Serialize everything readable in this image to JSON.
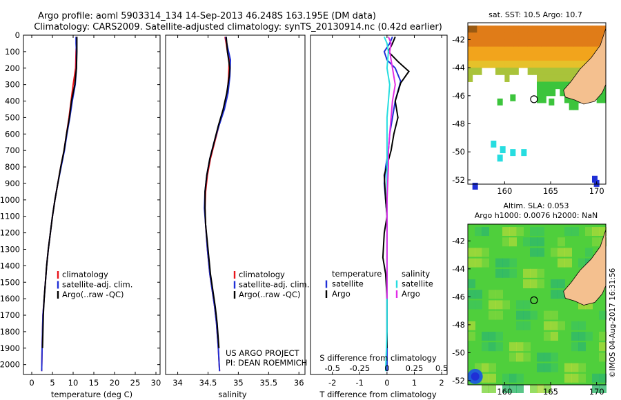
{
  "header": {
    "title_line1": "Argo profile: aoml 5903314_134 14-Sep-2013 46.248S 163.195E (DM data)",
    "title_line2": "Climatology: CARS2009. Satellite-adjusted climatology: synTS_20130914.nc (0.42d earlier)"
  },
  "colors": {
    "climatology": "#e8141a",
    "satellite": "#1f2fd6",
    "argo": "#000000",
    "satellite_salinity": "#27dde0",
    "argo_salinity": "#e12ee6",
    "land": "#f4c08f"
  },
  "depth_ticks": [
    "0",
    "100",
    "200",
    "300",
    "400",
    "500",
    "600",
    "700",
    "800",
    "900",
    "1000",
    "1100",
    "1200",
    "1300",
    "1400",
    "1500",
    "1600",
    "1700",
    "1800",
    "1900",
    "2000"
  ],
  "chart_data": [
    {
      "type": "line",
      "name": "temperature",
      "xlabel": "temperature (deg C)",
      "xlim": [
        -2,
        31
      ],
      "ylim": [
        2060,
        0
      ],
      "xticks": [
        "0",
        "5",
        "10",
        "15",
        "20",
        "25",
        "30"
      ],
      "legend": [
        "climatology",
        "satellite-adj. clim.",
        "Argo(..raw -QC)"
      ],
      "series": [
        {
          "name": "climatology",
          "color": "#e8141a",
          "x": [
            10.8,
            10.8,
            10.7,
            10.6,
            10.0,
            9.5,
            9.0,
            8.4,
            7.8,
            7.0,
            6.3,
            5.6,
            5.0,
            4.5,
            4.0,
            3.6,
            3.3,
            3.0,
            2.7,
            2.5,
            2.4
          ],
          "y": [
            10,
            50,
            100,
            200,
            300,
            400,
            500,
            600,
            700,
            800,
            900,
            1000,
            1100,
            1200,
            1300,
            1400,
            1500,
            1600,
            1700,
            1900,
            2040
          ]
        },
        {
          "name": "satellite-adj. clim.",
          "color": "#1f2fd6",
          "x": [
            10.7,
            10.7,
            10.8,
            10.8,
            10.5,
            9.8,
            9.2,
            8.5,
            7.9,
            7.1,
            6.3,
            5.6,
            5.0,
            4.5,
            4.0,
            3.6,
            3.3,
            3.0,
            2.7,
            2.5,
            2.4
          ],
          "y": [
            10,
            50,
            100,
            200,
            300,
            400,
            500,
            600,
            700,
            800,
            900,
            1000,
            1100,
            1200,
            1300,
            1400,
            1500,
            1600,
            1700,
            1900,
            2040
          ]
        },
        {
          "name": "Argo(..raw -QC)",
          "color": "#000000",
          "x": [
            10.9,
            10.9,
            10.9,
            10.8,
            10.4,
            9.6,
            9.1,
            8.4,
            7.8,
            7.0,
            6.3,
            5.6,
            5.0,
            4.5,
            4.0,
            3.6,
            3.3,
            3.0,
            2.8,
            2.6
          ],
          "y": [
            10,
            50,
            100,
            200,
            300,
            400,
            500,
            600,
            700,
            800,
            900,
            1000,
            1100,
            1200,
            1300,
            1400,
            1500,
            1600,
            1700,
            1900
          ]
        }
      ]
    },
    {
      "type": "line",
      "name": "salinity",
      "xlabel": "salinity",
      "xlim": [
        33.8,
        36.1
      ],
      "ylim": [
        2060,
        0
      ],
      "xticks": [
        "34",
        "34.5",
        "35",
        "35.5",
        "36"
      ],
      "legend": [
        "climatology",
        "satellite-adj. clim.",
        "Argo(..raw -QC)"
      ],
      "annotation": [
        "US ARGO PROJECT",
        "PI: DEAN ROEMMICH"
      ],
      "series": [
        {
          "name": "climatology",
          "color": "#e8141a",
          "x": [
            34.78,
            34.8,
            34.82,
            34.85,
            34.84,
            34.82,
            34.76,
            34.68,
            34.61,
            34.54,
            34.49,
            34.46,
            34.45,
            34.46,
            34.49,
            34.53,
            34.57,
            34.61,
            34.64,
            34.67,
            34.69
          ],
          "y": [
            10,
            50,
            100,
            150,
            250,
            350,
            450,
            550,
            650,
            750,
            850,
            950,
            1050,
            1150,
            1300,
            1450,
            1550,
            1650,
            1750,
            1900,
            2040
          ]
        },
        {
          "name": "satellite-adj. clim.",
          "color": "#1f2fd6",
          "x": [
            34.79,
            34.81,
            34.84,
            34.87,
            34.86,
            34.83,
            34.77,
            34.68,
            34.6,
            34.53,
            34.48,
            34.45,
            34.44,
            34.46,
            34.49,
            34.53,
            34.57,
            34.61,
            34.64,
            34.67,
            34.69
          ],
          "y": [
            10,
            50,
            100,
            150,
            250,
            350,
            450,
            550,
            650,
            750,
            850,
            950,
            1050,
            1150,
            1300,
            1450,
            1550,
            1650,
            1750,
            1900,
            2040
          ]
        },
        {
          "name": "Argo(..raw -QC)",
          "color": "#000000",
          "x": [
            34.8,
            34.81,
            34.82,
            34.86,
            34.85,
            34.81,
            34.75,
            34.67,
            34.6,
            34.53,
            34.48,
            34.45,
            34.45,
            34.46,
            34.5,
            34.54,
            34.58,
            34.62,
            34.65,
            34.68
          ],
          "y": [
            10,
            50,
            100,
            200,
            250,
            350,
            450,
            550,
            650,
            750,
            850,
            950,
            1050,
            1150,
            1300,
            1450,
            1550,
            1650,
            1750,
            1900
          ]
        }
      ]
    },
    {
      "type": "line",
      "name": "difference",
      "xlabel": "T difference from climatology",
      "xlabel_top": "S difference from climatology",
      "xlim": [
        -2.8,
        2.2
      ],
      "ylim": [
        2060,
        0
      ],
      "xticks": [
        "-2",
        "-1",
        "0",
        "1",
        "2"
      ],
      "xticks_top": [
        "-0.5",
        "-0.25",
        "0",
        "0.25",
        "0.5"
      ],
      "legend_left": [
        "temperature",
        "satellite",
        "Argo"
      ],
      "legend_right": [
        "salinity",
        "satellite",
        "Argo"
      ],
      "series": [
        {
          "name": "satellite",
          "color": "#1f2fd6",
          "x": [
            0.2,
            0.1,
            -0.1,
            0.0,
            0.3,
            0.5,
            0.3,
            0.2,
            0.1,
            0.05,
            -0.05,
            -0.1,
            -0.05,
            0.0,
            0.0,
            0.0,
            0.0,
            0.0,
            0.0,
            0.0
          ],
          "y": [
            10,
            50,
            100,
            150,
            200,
            280,
            400,
            500,
            600,
            700,
            800,
            900,
            1000,
            1100,
            1200,
            1300,
            1400,
            1600,
            1800,
            2040
          ]
        },
        {
          "name": "Argo",
          "color": "#000000",
          "x": [
            0.3,
            0.2,
            0.05,
            0.4,
            0.8,
            0.5,
            0.3,
            0.4,
            0.25,
            0.15,
            -0.1,
            -0.05,
            0.0,
            -0.1,
            -0.15,
            -0.05,
            0.0,
            0.0,
            0.0
          ],
          "y": [
            10,
            50,
            100,
            160,
            220,
            290,
            400,
            500,
            600,
            700,
            850,
            1000,
            1100,
            1200,
            1350,
            1450,
            1600,
            1800,
            1900
          ]
        },
        {
          "name": "satellite",
          "color": "#27dde0",
          "x": [
            -0.1,
            0.0,
            0.05,
            0.0,
            0.1,
            0.05,
            0.0,
            0.0,
            0.0,
            0.0,
            0.0,
            0.0,
            0.0,
            0.0,
            0.0,
            -0.05
          ],
          "y": [
            10,
            50,
            100,
            200,
            300,
            400,
            500,
            600,
            700,
            800,
            1000,
            1200,
            1400,
            1600,
            1800,
            2040
          ]
        },
        {
          "name": "Argo",
          "color": "#e12ee6",
          "x": [
            0.05,
            0.15,
            0.1,
            0.2,
            0.3,
            0.2,
            0.15,
            0.1,
            0.05,
            0.05,
            0.0,
            0.0,
            0.0,
            0.0
          ],
          "y": [
            10,
            50,
            100,
            200,
            300,
            400,
            500,
            600,
            700,
            800,
            1000,
            1200,
            1400,
            1600
          ]
        }
      ]
    },
    {
      "type": "heatmap",
      "name": "sst-map",
      "title": "sat. SST: 10.5 Argo: 10.7",
      "xlim": [
        156,
        171
      ],
      "ylim": [
        -52.3,
        -40.8
      ],
      "xticks": [
        "160",
        "165",
        "170"
      ],
      "yticks": [
        "-42",
        "-44",
        "-46",
        "-48",
        "-50",
        "-52"
      ],
      "argo_position": {
        "lon": 163.195,
        "lat": -46.248
      }
    },
    {
      "type": "heatmap",
      "name": "sla-map",
      "title_line1": "Altim. SLA: 0.053",
      "title_line2": "Argo h1000: 0.0076 h2000: NaN",
      "xlim": [
        156,
        171
      ],
      "ylim": [
        -52.3,
        -40.8
      ],
      "xticks": [
        "160",
        "165",
        "170"
      ],
      "yticks": [
        "-42",
        "-44",
        "-46",
        "-48",
        "-50",
        "-52"
      ],
      "argo_position": {
        "lon": 163.195,
        "lat": -46.248
      }
    }
  ],
  "stamp": "©IMOS 04-Aug-2017 16:31:56"
}
